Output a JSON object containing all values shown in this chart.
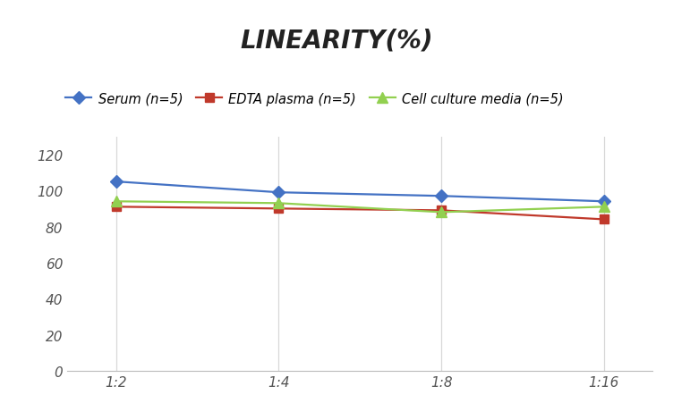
{
  "title": "LINEARITY(%)",
  "x_labels": [
    "1:2",
    "1:4",
    "1:8",
    "1:16"
  ],
  "series": [
    {
      "label": "Serum (n=5)",
      "values": [
        105,
        99,
        97,
        94
      ],
      "color": "#4472C4",
      "marker": "D",
      "marker_size": 7,
      "linewidth": 1.6
    },
    {
      "label": "EDTA plasma (n=5)",
      "values": [
        91,
        90,
        89,
        84
      ],
      "color": "#C0392B",
      "marker": "s",
      "marker_size": 7,
      "linewidth": 1.6
    },
    {
      "label": "Cell culture media (n=5)",
      "values": [
        94,
        93,
        88,
        91
      ],
      "color": "#92D050",
      "marker": "^",
      "marker_size": 8,
      "linewidth": 1.6
    }
  ],
  "ylim": [
    0,
    130
  ],
  "yticks": [
    0,
    20,
    40,
    60,
    80,
    100,
    120
  ],
  "background_color": "#ffffff",
  "title_fontsize": 20,
  "legend_fontsize": 10.5,
  "tick_fontsize": 11,
  "grid_color": "#d8d8d8",
  "spine_color": "#bbbbbb"
}
